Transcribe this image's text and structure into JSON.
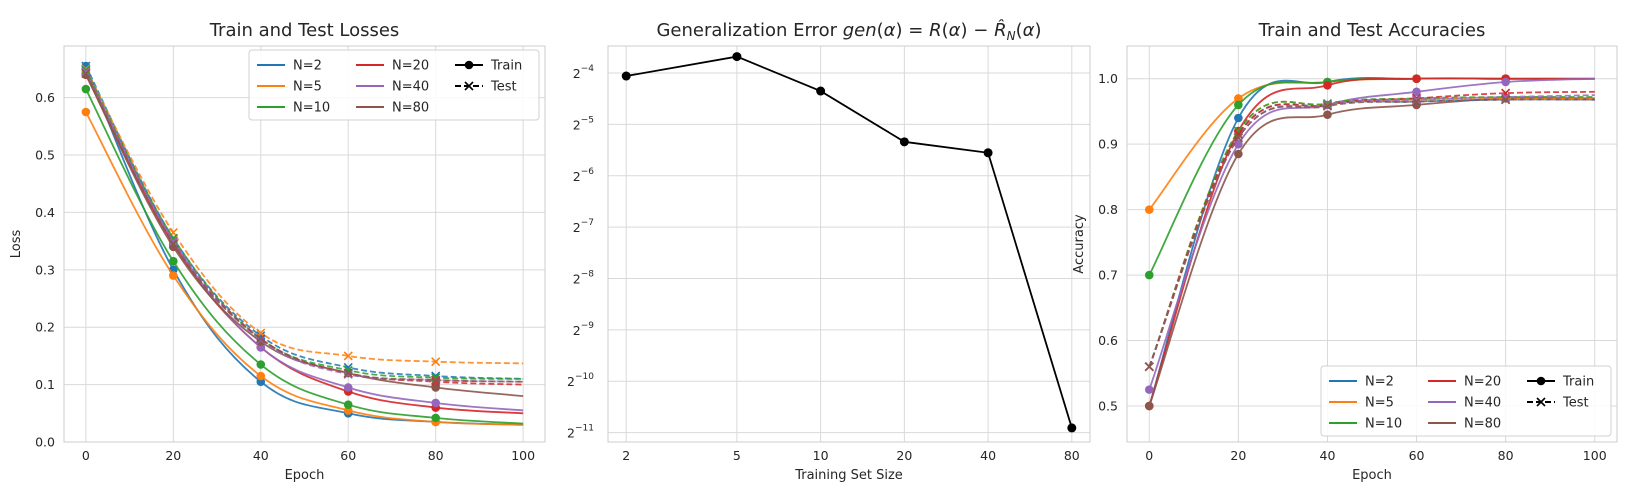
{
  "colors": {
    "N=2": "#1f77b4",
    "N=5": "#ff7f0e",
    "N=10": "#2ca02c",
    "N=20": "#d62728",
    "N=40": "#9467bd",
    "N=80": "#8c564b",
    "black": "#000000"
  },
  "chart_data": [
    {
      "type": "line",
      "title": "Train and Test Losses",
      "xlabel": "Epoch",
      "ylabel": "Loss",
      "xlim": [
        -5,
        105
      ],
      "ylim": [
        0.0,
        0.69
      ],
      "xticks": [
        0,
        20,
        40,
        60,
        80,
        100
      ],
      "yticks": [
        0.0,
        0.1,
        0.2,
        0.3,
        0.4,
        0.5,
        0.6
      ],
      "ytick_labels": [
        "0.0",
        "0.1",
        "0.2",
        "0.3",
        "0.4",
        "0.5",
        "0.6"
      ],
      "grid": true,
      "legend_position": "upper right",
      "legend": {
        "ncol": 3,
        "entries": [
          "N=2",
          "N=5",
          "N=10",
          "N=20",
          "N=40",
          "N=80"
        ],
        "style_entries": [
          "Train",
          "Test"
        ]
      },
      "x": [
        0,
        20,
        40,
        60,
        80,
        100
      ],
      "series": [
        {
          "name": "N=2",
          "split": "Train",
          "values": [
            0.655,
            0.3,
            0.105,
            0.05,
            0.035,
            0.03
          ]
        },
        {
          "name": "N=5",
          "split": "Train",
          "values": [
            0.575,
            0.29,
            0.115,
            0.055,
            0.035,
            0.03
          ]
        },
        {
          "name": "N=10",
          "split": "Train",
          "values": [
            0.615,
            0.315,
            0.135,
            0.065,
            0.042,
            0.032
          ]
        },
        {
          "name": "N=20",
          "split": "Train",
          "values": [
            0.64,
            0.345,
            0.165,
            0.088,
            0.06,
            0.05
          ]
        },
        {
          "name": "N=40",
          "split": "Train",
          "values": [
            0.645,
            0.35,
            0.165,
            0.095,
            0.068,
            0.055
          ]
        },
        {
          "name": "N=80",
          "split": "Train",
          "values": [
            0.64,
            0.34,
            0.175,
            0.12,
            0.095,
            0.08
          ]
        },
        {
          "name": "N=2",
          "split": "Test",
          "values": [
            0.655,
            0.355,
            0.185,
            0.13,
            0.115,
            0.11
          ]
        },
        {
          "name": "N=5",
          "split": "Test",
          "values": [
            0.65,
            0.365,
            0.19,
            0.15,
            0.14,
            0.137
          ]
        },
        {
          "name": "N=10",
          "split": "Test",
          "values": [
            0.648,
            0.355,
            0.18,
            0.125,
            0.112,
            0.11
          ]
        },
        {
          "name": "N=20",
          "split": "Test",
          "values": [
            0.645,
            0.35,
            0.18,
            0.12,
            0.105,
            0.1
          ]
        },
        {
          "name": "N=40",
          "split": "Test",
          "values": [
            0.645,
            0.35,
            0.178,
            0.118,
            0.108,
            0.105
          ]
        },
        {
          "name": "N=80",
          "split": "Test",
          "values": [
            0.642,
            0.345,
            0.18,
            0.12,
            0.108,
            0.105
          ]
        }
      ]
    },
    {
      "type": "line",
      "title": "Generalization Error gen(α) = R(α) − R̂N(α)",
      "xlabel": "Training Set Size",
      "ylabel": "",
      "xscale": "log",
      "yscale": "log2",
      "xlim": [
        1.72,
        93
      ],
      "ylim": [
        0.00043,
        0.09
      ],
      "xticks": [
        2,
        5,
        10,
        20,
        40,
        80
      ],
      "yticks": [
        0.00048828125,
        0.0009765625,
        0.001953125,
        0.00390625,
        0.0078125,
        0.015625,
        0.03125,
        0.0625
      ],
      "ytick_exponents": [
        "−11",
        "−10",
        "−9",
        "−8",
        "−7",
        "−6",
        "−5",
        "−4"
      ],
      "grid": true,
      "x": [
        2,
        5,
        10,
        20,
        40,
        80
      ],
      "series": [
        {
          "values": [
            0.06,
            0.078,
            0.049,
            0.0247,
            0.0213,
            0.00052
          ]
        }
      ]
    },
    {
      "type": "line",
      "title": "Train and Test Accuracies",
      "xlabel": "Epoch",
      "ylabel": "Accuracy",
      "xlim": [
        -5,
        105
      ],
      "ylim": [
        0.445,
        1.05
      ],
      "xticks": [
        0,
        20,
        40,
        60,
        80,
        100
      ],
      "yticks": [
        0.5,
        0.6,
        0.7,
        0.8,
        0.9,
        1.0
      ],
      "ytick_labels": [
        "0.5",
        "0.6",
        "0.7",
        "0.8",
        "0.9",
        "1.0"
      ],
      "grid": true,
      "legend_position": "lower right",
      "legend": {
        "ncol": 3,
        "entries": [
          "N=2",
          "N=5",
          "N=10",
          "N=20",
          "N=40",
          "N=80"
        ],
        "style_entries": [
          "Train",
          "Test"
        ]
      },
      "x": [
        0,
        20,
        40,
        60,
        80,
        100
      ],
      "series": [
        {
          "name": "N=2",
          "split": "Train",
          "values": [
            0.5,
            0.94,
            0.995,
            1.0,
            1.0,
            1.0
          ]
        },
        {
          "name": "N=5",
          "split": "Train",
          "values": [
            0.8,
            0.97,
            0.995,
            1.0,
            1.0,
            1.0
          ]
        },
        {
          "name": "N=10",
          "split": "Train",
          "values": [
            0.7,
            0.96,
            0.995,
            1.0,
            1.0,
            1.0
          ]
        },
        {
          "name": "N=20",
          "split": "Train",
          "values": [
            0.5,
            0.92,
            0.99,
            1.0,
            1.0,
            1.0
          ]
        },
        {
          "name": "N=40",
          "split": "Train",
          "values": [
            0.525,
            0.9,
            0.96,
            0.98,
            0.995,
            1.0
          ]
        },
        {
          "name": "N=80",
          "split": "Train",
          "values": [
            0.5,
            0.885,
            0.945,
            0.96,
            0.97,
            0.97
          ]
        },
        {
          "name": "N=2",
          "split": "Test",
          "values": [
            0.56,
            0.915,
            0.96,
            0.965,
            0.968,
            0.968
          ]
        },
        {
          "name": "N=5",
          "split": "Test",
          "values": [
            0.56,
            0.92,
            0.962,
            0.968,
            0.97,
            0.97
          ]
        },
        {
          "name": "N=10",
          "split": "Test",
          "values": [
            0.56,
            0.92,
            0.962,
            0.97,
            0.972,
            0.972
          ]
        },
        {
          "name": "N=20",
          "split": "Test",
          "values": [
            0.56,
            0.915,
            0.96,
            0.97,
            0.978,
            0.98
          ]
        },
        {
          "name": "N=40",
          "split": "Test",
          "values": [
            0.56,
            0.91,
            0.96,
            0.968,
            0.972,
            0.975
          ]
        },
        {
          "name": "N=80",
          "split": "Test",
          "values": [
            0.56,
            0.91,
            0.958,
            0.965,
            0.968,
            0.968
          ]
        }
      ]
    }
  ]
}
